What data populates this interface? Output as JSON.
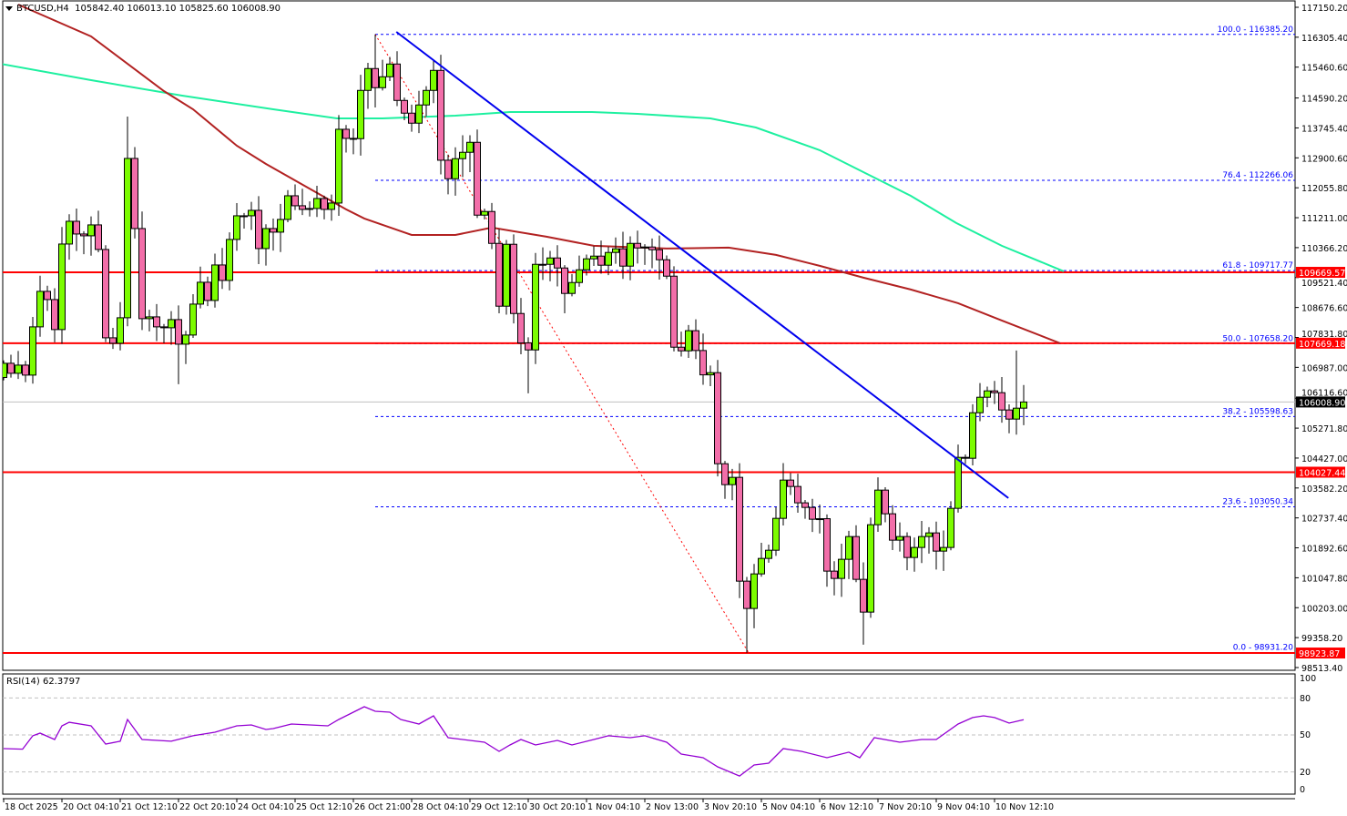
{
  "header": {
    "symbol": "BTCUSD,H4",
    "ohlc": "105842.40 106013.10 105825.60 106008.90"
  },
  "rsi_title": "RSI(14) 62.3797",
  "colors": {
    "up": "#7cfc00",
    "down": "#f26ea9",
    "ma_fast": "#b22222",
    "ma_slow": "#1ef0a0",
    "level": "#ff0000",
    "fib": "#0000ff",
    "trend": "#0000ee",
    "rsi": "#9400d3",
    "fib_diag": "#ff0000"
  },
  "chart_data": {
    "type": "candlestick",
    "symbol": "BTCUSD",
    "timeframe": "H4",
    "ylim": [
      98513.4,
      117150.2
    ],
    "price_ticks": [
      "117150.20",
      "116305.40",
      "115460.60",
      "114590.20",
      "113745.40",
      "112900.60",
      "112055.80",
      "111211.00",
      "110366.20",
      "109521.40",
      "108676.60",
      "107831.80",
      "106987.00",
      "106116.60",
      "105271.80",
      "104427.00",
      "103582.20",
      "102737.40",
      "101892.60",
      "101047.80",
      "100203.00",
      "99358.20",
      "98513.40"
    ],
    "time_labels": [
      "18 Oct 2025",
      "20 Oct 04:10",
      "21 Oct 12:10",
      "22 Oct 20:10",
      "24 Oct 04:10",
      "25 Oct 12:10",
      "26 Oct 21:00",
      "28 Oct 04:10",
      "29 Oct 12:10",
      "30 Oct 20:10",
      "1 Nov 04:10",
      "2 Nov 13:00",
      "3 Nov 20:10",
      "5 Nov 04:10",
      "6 Nov 12:10",
      "7 Nov 20:10",
      "9 Nov 04:10",
      "10 Nov 12:10"
    ],
    "time_label_every_n_bars": 8,
    "first_open": 106700,
    "close": [
      107102,
      106819,
      107050,
      106768,
      108130,
      109132,
      108900,
      108053,
      110468,
      111110,
      110751,
      110700,
      111008,
      110314,
      107821,
      107667,
      108387,
      112884,
      110905,
      108361,
      108412,
      108130,
      108104,
      108335,
      107641,
      107899,
      108772,
      109389,
      108875,
      109877,
      109440,
      110597,
      111265,
      111265,
      111419,
      110340,
      110905,
      110803,
      111162,
      111830,
      111548,
      111445,
      111471,
      111753,
      111445,
      111625,
      113707,
      113450,
      113442,
      114804,
      115421,
      114881,
      115189,
      115549,
      114521,
      114162,
      113879,
      114393,
      114804,
      115369,
      112833,
      112311,
      112877,
      113057,
      113339,
      111283,
      111386,
      110486,
      108713,
      110461,
      108507,
      107675,
      107479,
      109895,
      109895,
      110075,
      109792,
      109073,
      109381,
      109741,
      110050,
      110127,
      109870,
      110230,
      110333,
      109844,
      110486,
      110358,
      110384,
      110307,
      110024,
      109561,
      107556,
      107453,
      108022,
      107462,
      106775,
      106837,
      104267,
      103676,
      103882,
      100952,
      100181,
      101157,
      101594,
      101825,
      102725,
      103805,
      103625,
      103163,
      103034,
      102700,
      102715,
      101235,
      101029,
      101569,
      102211,
      101003,
      100078,
      102545,
      103522,
      102854,
      102109,
      102211,
      101620,
      101903,
      102211,
      102314,
      101800,
      101903,
      103008,
      104447,
      104421,
      105706,
      106143,
      106323,
      106272,
      105784,
      105527,
      105835,
      106008.9
    ],
    "high_overrides": {
      "17": 114066,
      "51": 116385.2,
      "139": 107462
    },
    "low_overrides": {
      "102": 98931.2,
      "118": 99160,
      "72": 106254,
      "24": 106510
    },
    "ma_fast": [
      [
        2,
        117228
      ],
      [
        12,
        116328
      ],
      [
        22,
        114786
      ],
      [
        26,
        114272
      ],
      [
        32,
        113244
      ],
      [
        36,
        112730
      ],
      [
        47,
        111445
      ],
      [
        49.5,
        111188
      ],
      [
        56,
        110725
      ],
      [
        62,
        110725
      ],
      [
        67,
        110931
      ],
      [
        74.5,
        110674
      ],
      [
        81,
        110417
      ],
      [
        91,
        110340
      ],
      [
        99.5,
        110366
      ],
      [
        106,
        110160
      ],
      [
        112,
        109852
      ],
      [
        118,
        109518
      ],
      [
        124.5,
        109184
      ],
      [
        131,
        108798
      ],
      [
        137,
        108310
      ],
      [
        145,
        107667
      ]
    ],
    "ma_slow": [
      [
        -0.5,
        115557
      ],
      [
        12,
        115094
      ],
      [
        24.5,
        114658
      ],
      [
        37,
        114272
      ],
      [
        45.75,
        114015
      ],
      [
        52,
        114015
      ],
      [
        62,
        114090
      ],
      [
        69.5,
        114195
      ],
      [
        80.75,
        114195
      ],
      [
        87,
        114143
      ],
      [
        97,
        114015
      ],
      [
        103.25,
        113758
      ],
      [
        112,
        113116
      ],
      [
        118.25,
        112473
      ],
      [
        124.5,
        111830
      ],
      [
        130.75,
        111060
      ],
      [
        137,
        110417
      ],
      [
        145.5,
        109698
      ]
    ],
    "trendline": [
      [
        53.9,
        116456
      ],
      [
        137.9,
        103298
      ]
    ],
    "fib_diagonal": [
      [
        51,
        116385.2
      ],
      [
        102.25,
        98931.2
      ]
    ],
    "fib_start_bar": 51,
    "fib_levels": [
      {
        "label": "100.0 - 116385.20",
        "price": 116385.2
      },
      {
        "label": "76.4 - 112266.06",
        "price": 112266.06
      },
      {
        "label": "61.8 - 109717.77",
        "price": 109717.77
      },
      {
        "label": "50.0 - 107658.20",
        "price": 107658.2
      },
      {
        "label": "38.2 - 105598.63",
        "price": 105598.63
      },
      {
        "label": "23.6 - 103050.34",
        "price": 103050.34
      },
      {
        "label": "0.0 - 98931.20",
        "price": 98931.2
      }
    ],
    "horizontal_levels": [
      {
        "label": "109669.57",
        "price": 109669.57
      },
      {
        "label": "107669.18",
        "price": 107669.18
      },
      {
        "label": "104027.44",
        "price": 104027.44
      },
      {
        "label": "98923.87",
        "price": 98923.87
      }
    ],
    "current_price": {
      "label": "106008.90",
      "price": 106008.9
    },
    "rsi": {
      "period": 14,
      "value": 62.3797,
      "ylim": [
        0,
        100
      ],
      "ticks": [
        "100",
        "80",
        "50",
        "20",
        "0"
      ],
      "levels": [
        80,
        50,
        20
      ],
      "points": [
        [
          0,
          38.9
        ],
        [
          2.6,
          38.5
        ],
        [
          4,
          49.3
        ],
        [
          5,
          51.5
        ],
        [
          7,
          46.3
        ],
        [
          8,
          57.4
        ],
        [
          9,
          60.3
        ],
        [
          12,
          57.4
        ],
        [
          14,
          42.6
        ],
        [
          16,
          44.9
        ],
        [
          17,
          62.6
        ],
        [
          19,
          46.3
        ],
        [
          23,
          44.9
        ],
        [
          26,
          49.3
        ],
        [
          29,
          52.2
        ],
        [
          32,
          57.4
        ],
        [
          34,
          58.1
        ],
        [
          36,
          54.4
        ],
        [
          37,
          55.2
        ],
        [
          39.5,
          58.9
        ],
        [
          44.5,
          57.4
        ],
        [
          46,
          62.6
        ],
        [
          48,
          68.5
        ],
        [
          49.5,
          72.9
        ],
        [
          51,
          69.2
        ],
        [
          53,
          68.5
        ],
        [
          54.5,
          62.6
        ],
        [
          57,
          58.9
        ],
        [
          59,
          65.5
        ],
        [
          61,
          47.8
        ],
        [
          66,
          44.1
        ],
        [
          68,
          36.7
        ],
        [
          69.5,
          41.9
        ],
        [
          71,
          46.3
        ],
        [
          73,
          41.9
        ],
        [
          76,
          45.6
        ],
        [
          78,
          41.9
        ],
        [
          81,
          46.3
        ],
        [
          83,
          49.3
        ],
        [
          86,
          47.8
        ],
        [
          88,
          49.3
        ],
        [
          91,
          44.1
        ],
        [
          93,
          34.5
        ],
        [
          96,
          31.5
        ],
        [
          98,
          24.1
        ],
        [
          101,
          16.7
        ],
        [
          103,
          25.6
        ],
        [
          105,
          27.1
        ],
        [
          107,
          38.9
        ],
        [
          109.5,
          36.7
        ],
        [
          113,
          31.5
        ],
        [
          116,
          36
        ],
        [
          117.5,
          31.5
        ],
        [
          119.5,
          47.8
        ],
        [
          123,
          44.1
        ],
        [
          126,
          46.3
        ],
        [
          128,
          46.3
        ],
        [
          131,
          58.9
        ],
        [
          133,
          64.1
        ],
        [
          134.5,
          65.5
        ],
        [
          136,
          64.1
        ],
        [
          138,
          59.6
        ],
        [
          140,
          62.38
        ]
      ]
    }
  }
}
